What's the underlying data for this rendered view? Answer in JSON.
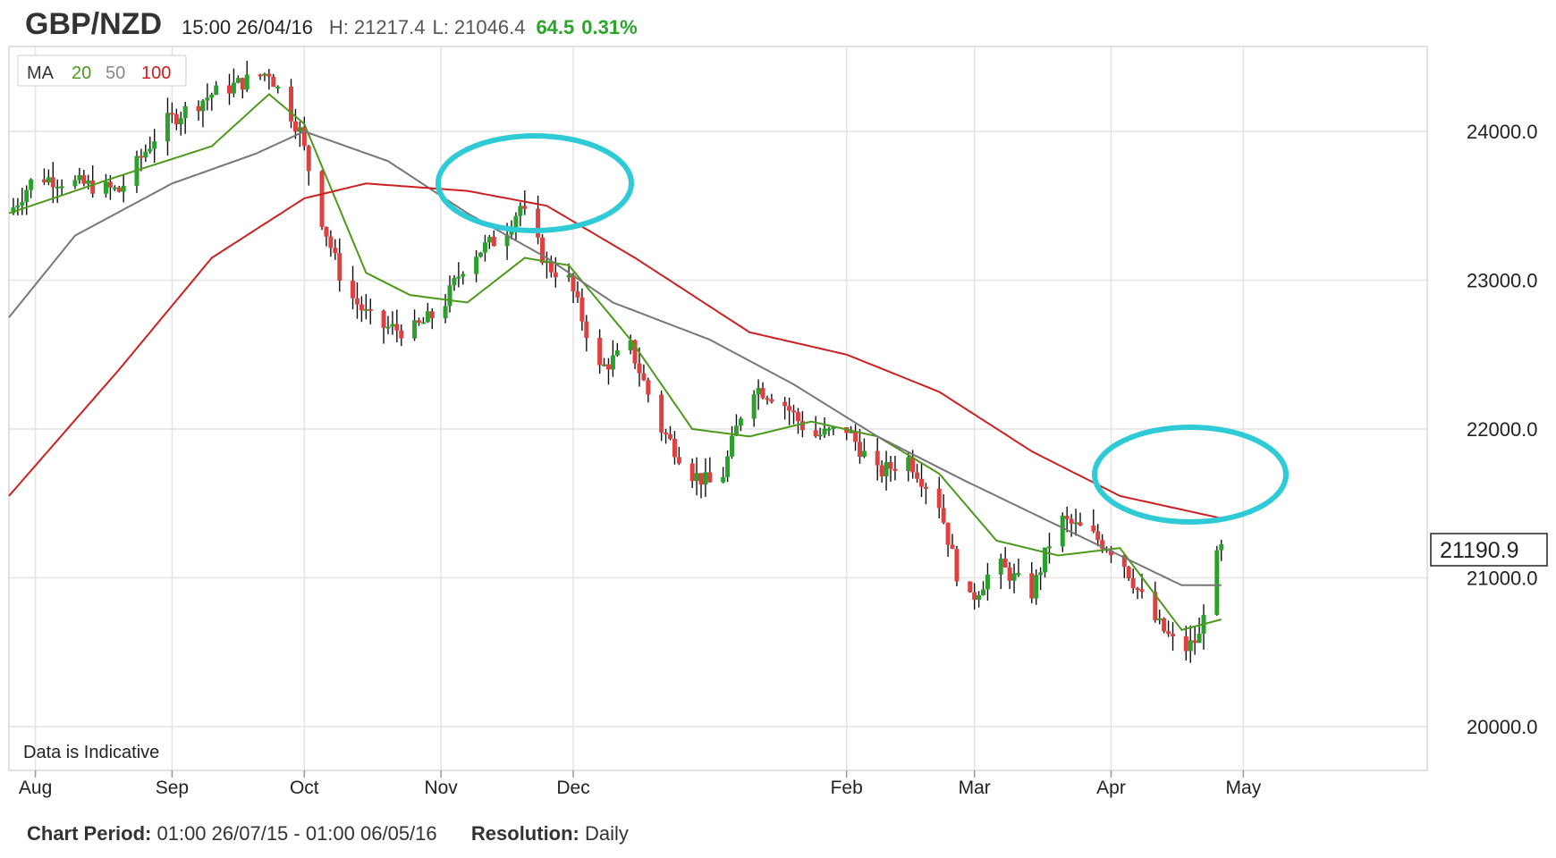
{
  "header": {
    "symbol": "GBP/NZD",
    "timestamp": "15:00 26/04/16",
    "high": "H: 21217.4",
    "low": "L: 21046.4",
    "change": "64.5",
    "change_pct": "0.31%"
  },
  "legend": {
    "prefix": "MA",
    "ma20": "20",
    "ma50": "50",
    "ma100": "100"
  },
  "note": "Data is Indicative",
  "current_price": "21190.9",
  "footer": {
    "period_label": "Chart Period:",
    "period_value": "01:00 26/07/15 - 01:00 06/05/16",
    "resolution_label": "Resolution:",
    "resolution_value": "Daily"
  },
  "colors": {
    "up": "#2ca02c",
    "down": "#e04040",
    "ma20": "#4c9a1a",
    "ma50": "#777777",
    "ma100": "#cc2020",
    "highlight": "#2ecbd6",
    "grid": "#e4e4e4"
  },
  "chart_data": {
    "type": "candlestick",
    "resolution": "Daily",
    "y_ticks": [
      "24000.0",
      "23000.0",
      "22000.0",
      "21000.0",
      "20000.0"
    ],
    "ylim": [
      19700,
      24550
    ],
    "x_ticks": [
      "Aug",
      "Sep",
      "Oct",
      "Nov",
      "Dec",
      "Feb",
      "Mar",
      "Apr",
      "May"
    ],
    "price_anchors": [
      {
        "date": "26/07/15",
        "close": 23450
      },
      {
        "date": "01/08/15",
        "close": 23700
      },
      {
        "date": "20/08/15",
        "close": 23600
      },
      {
        "date": "30/08/15",
        "close": 24050
      },
      {
        "date": "10/09/15",
        "close": 24250
      },
      {
        "date": "23/09/15",
        "close": 24400
      },
      {
        "date": "30/09/15",
        "close": 24000
      },
      {
        "date": "04/10/15",
        "close": 23500
      },
      {
        "date": "10/10/15",
        "close": 22950
      },
      {
        "date": "17/10/15",
        "close": 22700
      },
      {
        "date": "25/10/15",
        "close": 22650
      },
      {
        "date": "01/11/15",
        "close": 22800
      },
      {
        "date": "07/11/15",
        "close": 23150
      },
      {
        "date": "15/11/15",
        "close": 23300
      },
      {
        "date": "19/11/15",
        "close": 23500
      },
      {
        "date": "25/11/15",
        "close": 23100
      },
      {
        "date": "30/11/15",
        "close": 23000
      },
      {
        "date": "07/12/15",
        "close": 22400
      },
      {
        "date": "14/12/15",
        "close": 22550
      },
      {
        "date": "21/12/15",
        "close": 22000
      },
      {
        "date": "28/12/15",
        "close": 21700
      },
      {
        "date": "03/01/16",
        "close": 21600
      },
      {
        "date": "10/01/16",
        "close": 22300
      },
      {
        "date": "17/01/16",
        "close": 22200
      },
      {
        "date": "24/01/16",
        "close": 21950
      },
      {
        "date": "01/02/16",
        "close": 22000
      },
      {
        "date": "08/02/16",
        "close": 21700
      },
      {
        "date": "15/02/16",
        "close": 21800
      },
      {
        "date": "22/02/16",
        "close": 21500
      },
      {
        "date": "28/02/16",
        "close": 20800
      },
      {
        "date": "06/03/16",
        "close": 21100
      },
      {
        "date": "14/03/16",
        "close": 20900
      },
      {
        "date": "20/03/16",
        "close": 21400
      },
      {
        "date": "27/03/16",
        "close": 21300
      },
      {
        "date": "03/04/16",
        "close": 21150
      },
      {
        "date": "10/04/16",
        "close": 20750
      },
      {
        "date": "17/04/16",
        "close": 20500
      },
      {
        "date": "21/04/16",
        "close": 20600
      },
      {
        "date": "23/04/16",
        "close": 21000
      },
      {
        "date": "26/04/16",
        "close": 21190.9
      }
    ],
    "moving_averages": [
      {
        "name": "20",
        "points": [
          [
            "26/07/15",
            23450
          ],
          [
            "20/08/15",
            23700
          ],
          [
            "10/09/15",
            23900
          ],
          [
            "23/09/15",
            24250
          ],
          [
            "01/10/15",
            24050
          ],
          [
            "15/10/15",
            23050
          ],
          [
            "25/10/15",
            22900
          ],
          [
            "07/11/15",
            22850
          ],
          [
            "20/11/15",
            23150
          ],
          [
            "30/11/15",
            23100
          ],
          [
            "14/12/15",
            22600
          ],
          [
            "28/12/15",
            22000
          ],
          [
            "10/01/16",
            21950
          ],
          [
            "24/01/16",
            22050
          ],
          [
            "08/02/16",
            21950
          ],
          [
            "22/02/16",
            21700
          ],
          [
            "06/03/16",
            21250
          ],
          [
            "20/03/16",
            21150
          ],
          [
            "03/04/16",
            21200
          ],
          [
            "17/04/16",
            20650
          ],
          [
            "26/04/16",
            20720
          ]
        ]
      },
      {
        "name": "50",
        "points": [
          [
            "26/07/15",
            22750
          ],
          [
            "10/08/15",
            23300
          ],
          [
            "01/09/15",
            23650
          ],
          [
            "20/09/15",
            23850
          ],
          [
            "01/10/15",
            24000
          ],
          [
            "20/10/15",
            23800
          ],
          [
            "07/11/15",
            23450
          ],
          [
            "25/11/15",
            23150
          ],
          [
            "10/12/15",
            22850
          ],
          [
            "01/01/16",
            22600
          ],
          [
            "20/01/16",
            22300
          ],
          [
            "08/02/16",
            21950
          ],
          [
            "28/02/16",
            21650
          ],
          [
            "20/03/16",
            21350
          ],
          [
            "03/04/16",
            21150
          ],
          [
            "17/04/16",
            20950
          ],
          [
            "26/04/16",
            20950
          ]
        ]
      },
      {
        "name": "100",
        "points": [
          [
            "26/07/15",
            21550
          ],
          [
            "20/08/15",
            22400
          ],
          [
            "10/09/15",
            23150
          ],
          [
            "01/10/15",
            23550
          ],
          [
            "15/10/15",
            23650
          ],
          [
            "07/11/15",
            23600
          ],
          [
            "25/11/15",
            23500
          ],
          [
            "15/12/15",
            23150
          ],
          [
            "10/01/16",
            22650
          ],
          [
            "01/02/16",
            22500
          ],
          [
            "22/02/16",
            22250
          ],
          [
            "14/03/16",
            21850
          ],
          [
            "03/04/16",
            21550
          ],
          [
            "26/04/16",
            21400
          ]
        ]
      }
    ],
    "annotations": [
      "highlight circle near Nov–Dec peak crossing MA100",
      "highlight circle near late April crossing MA50 / MA100"
    ]
  }
}
